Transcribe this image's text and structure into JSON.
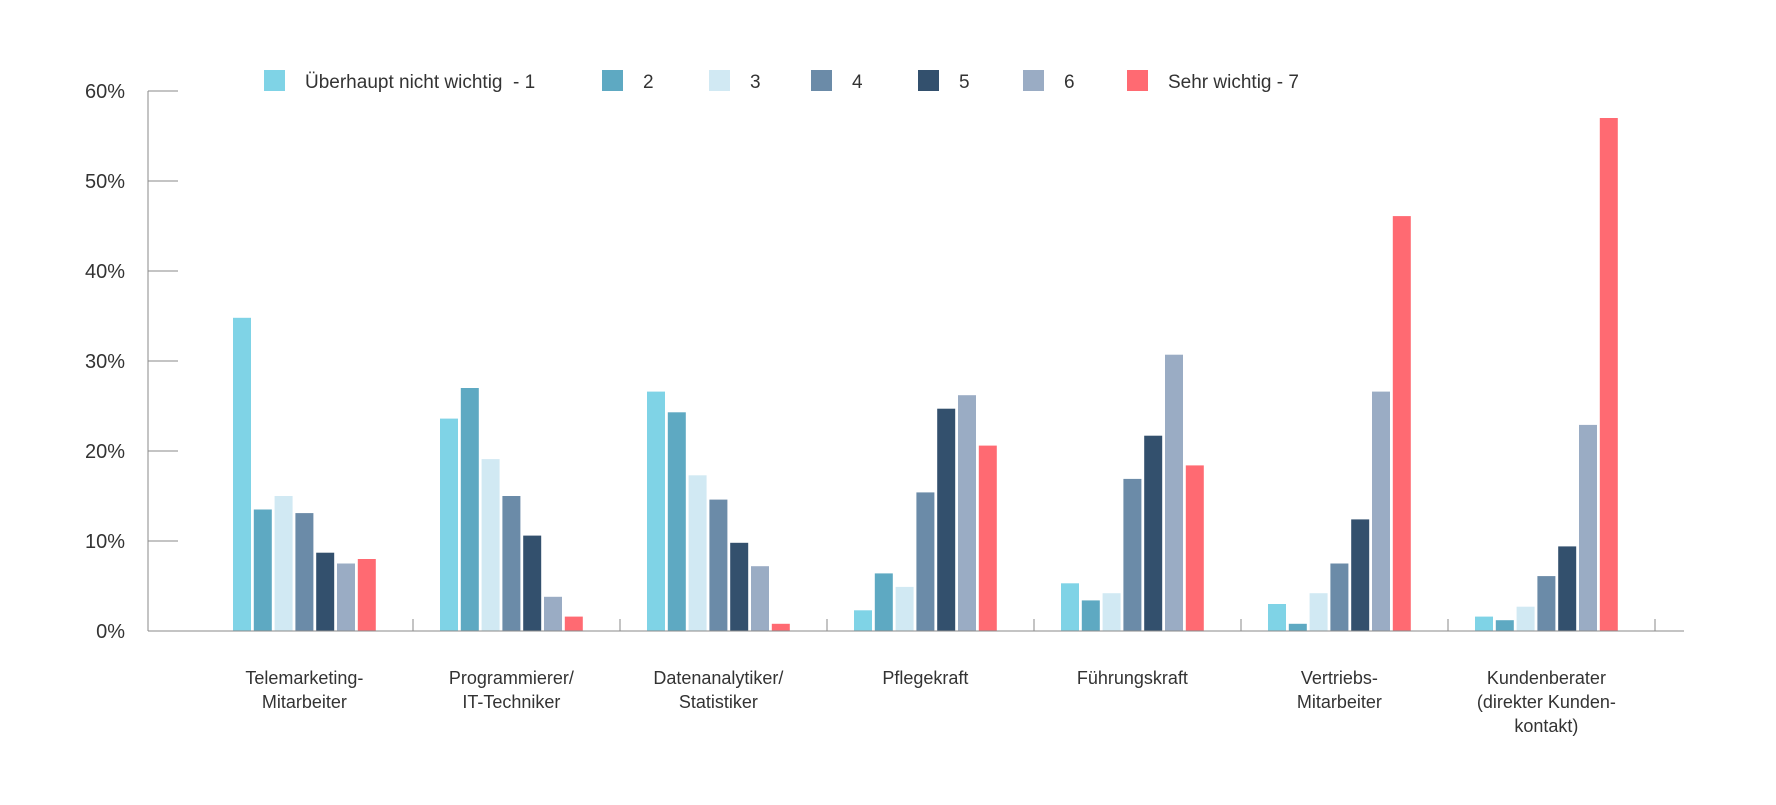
{
  "chart_data": {
    "type": "bar",
    "title": "",
    "xlabel": "",
    "ylabel": "",
    "ylim": [
      0,
      60
    ],
    "y_ticks": [
      "0%",
      "10%",
      "20%",
      "30%",
      "40%",
      "50%",
      "60%"
    ],
    "grid": false,
    "legend_position": "top",
    "categories": [
      [
        "Telemarketing-",
        "Mitarbeiter"
      ],
      [
        "Programmierer/",
        "IT-Techniker"
      ],
      [
        "Datenanalytiker/",
        "Statistiker"
      ],
      [
        "Pflegekraft"
      ],
      [
        "Führungskraft"
      ],
      [
        "Vertriebs-",
        "Mitarbeiter"
      ],
      [
        "Kundenberater",
        "(direkter Kunden-",
        "kontakt)"
      ]
    ],
    "series": [
      {
        "name": "Überhaupt nicht wichtig  - 1",
        "color": "#7FD3E6",
        "values": [
          34.8,
          23.6,
          26.6,
          2.3,
          5.3,
          3.0,
          1.6
        ]
      },
      {
        "name": "2",
        "color": "#5EA9C2",
        "values": [
          13.5,
          27.0,
          24.3,
          6.4,
          3.4,
          0.8,
          1.2
        ]
      },
      {
        "name": "3",
        "color": "#D1E9F3",
        "values": [
          15.0,
          19.1,
          17.3,
          4.9,
          4.2,
          4.2,
          2.7
        ]
      },
      {
        "name": "4",
        "color": "#6B8BA8",
        "values": [
          13.1,
          15.0,
          14.6,
          15.4,
          16.9,
          7.5,
          6.1
        ]
      },
      {
        "name": "5",
        "color": "#33506D",
        "values": [
          8.7,
          10.6,
          9.8,
          24.7,
          21.7,
          12.4,
          9.4
        ]
      },
      {
        "name": "6",
        "color": "#9AACC4",
        "values": [
          7.5,
          3.8,
          7.2,
          26.2,
          30.7,
          26.6,
          22.9
        ]
      },
      {
        "name": "Sehr wichtig - 7",
        "color": "#FF6A72",
        "values": [
          8.0,
          1.6,
          0.8,
          20.6,
          18.4,
          46.1,
          57.0
        ]
      }
    ]
  }
}
